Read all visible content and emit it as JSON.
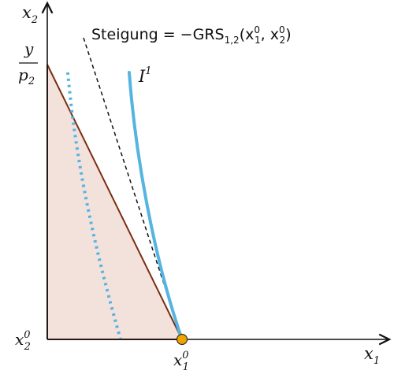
{
  "diagram": {
    "axes": {
      "x_label": "x",
      "x_label_sub": "1",
      "y_label": "x",
      "y_label_sub": "2"
    },
    "budget_intercept": {
      "numerator": "y",
      "denominator": "p",
      "denominator_sub": "2"
    },
    "point_labels": {
      "x2_0": {
        "base": "x",
        "sub": "2",
        "sup": "0"
      },
      "x1_0": {
        "base": "x",
        "sub": "1",
        "sup": "0"
      }
    },
    "slope_label": {
      "prefix": "Steigung = −GRS",
      "sub": "1,2",
      "open": "(x",
      "a_sub": "1",
      "a_sup": "0",
      "mid": ", x",
      "b_sub": "2",
      "b_sup": "0",
      "close": ")"
    },
    "indifference_label": {
      "base": "I",
      "sup": "1"
    },
    "colors": {
      "axis": "#111111",
      "budget_line": "#7a2e12",
      "budget_fill": "#f3e1dc",
      "indifference_curve": "#56b4e0",
      "tangent_dashed": "#111111",
      "point": "#f0a400"
    }
  }
}
